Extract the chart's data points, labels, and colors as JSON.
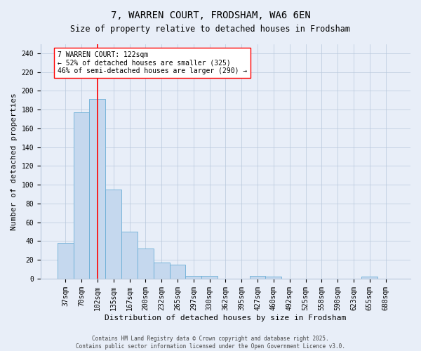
{
  "title": "7, WARREN COURT, FRODSHAM, WA6 6EN",
  "subtitle": "Size of property relative to detached houses in Frodsham",
  "xlabel": "Distribution of detached houses by size in Frodsham",
  "ylabel": "Number of detached properties",
  "categories": [
    "37sqm",
    "70sqm",
    "102sqm",
    "135sqm",
    "167sqm",
    "200sqm",
    "232sqm",
    "265sqm",
    "297sqm",
    "330sqm",
    "362sqm",
    "395sqm",
    "427sqm",
    "460sqm",
    "492sqm",
    "525sqm",
    "558sqm",
    "590sqm",
    "623sqm",
    "655sqm",
    "688sqm"
  ],
  "values": [
    38,
    177,
    191,
    95,
    50,
    32,
    17,
    15,
    3,
    3,
    0,
    0,
    3,
    2,
    0,
    0,
    0,
    0,
    0,
    2,
    0
  ],
  "bar_color": "#c5d8ee",
  "bar_edge_color": "#6baed6",
  "vline_x": 2,
  "vline_color": "red",
  "annotation_text": "7 WARREN COURT: 122sqm\n← 52% of detached houses are smaller (325)\n46% of semi-detached houses are larger (290) →",
  "annotation_box_color": "white",
  "annotation_box_edge_color": "red",
  "ylim": [
    0,
    250
  ],
  "yticks": [
    0,
    20,
    40,
    60,
    80,
    100,
    120,
    140,
    160,
    180,
    200,
    220,
    240
  ],
  "background_color": "#e8eef8",
  "footer_line1": "Contains HM Land Registry data © Crown copyright and database right 2025.",
  "footer_line2": "Contains public sector information licensed under the Open Government Licence v3.0.",
  "title_fontsize": 10,
  "subtitle_fontsize": 8.5,
  "xlabel_fontsize": 8,
  "ylabel_fontsize": 8,
  "tick_fontsize": 7,
  "annotation_fontsize": 7,
  "footer_fontsize": 5.5
}
